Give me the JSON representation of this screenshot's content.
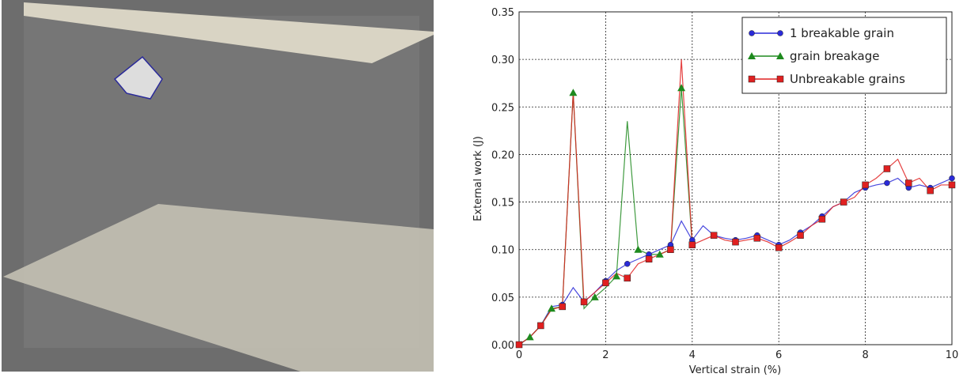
{
  "chart_data": {
    "type": "line",
    "x_label": "Vertical strain (%)",
    "y_label": "External work (J)",
    "x": [
      0,
      0.25,
      0.5,
      0.75,
      1,
      1.25,
      1.5,
      1.75,
      2,
      2.25,
      2.5,
      2.75,
      3,
      3.25,
      3.5,
      3.75,
      4,
      4.25,
      4.5,
      4.75,
      5,
      5.25,
      5.5,
      5.75,
      6,
      6.25,
      6.5,
      6.75,
      7,
      7.25,
      7.5,
      7.75,
      8,
      8.25,
      8.5,
      8.75,
      9,
      9.25,
      9.5,
      9.75,
      10
    ],
    "series": [
      {
        "name": "1 breakable grain",
        "color": "#2a2ad8",
        "marker": "circle",
        "values": [
          0,
          0.008,
          0.02,
          0.04,
          0.042,
          0.06,
          0.045,
          0.055,
          0.067,
          0.078,
          0.085,
          0.09,
          0.095,
          0.1,
          0.105,
          0.13,
          0.11,
          0.125,
          0.115,
          0.112,
          0.11,
          0.112,
          0.115,
          0.11,
          0.105,
          0.11,
          0.118,
          0.125,
          0.135,
          0.145,
          0.15,
          0.16,
          0.165,
          0.168,
          0.17,
          0.175,
          0.165,
          0.168,
          0.165,
          0.17,
          0.175
        ]
      },
      {
        "name": "grain breakage",
        "color": "#1e8a1e",
        "marker": "triangle",
        "values": [
          0,
          0.008,
          0.02,
          0.038,
          0.04,
          0.265,
          0.038,
          0.05,
          0.06,
          0.072,
          0.235,
          0.1,
          0.095,
          0.095,
          0.1,
          0.27,
          0.105,
          null,
          null,
          null,
          null,
          null,
          null,
          null,
          null,
          null,
          null,
          null,
          null,
          null,
          null,
          null,
          null,
          null,
          null,
          null,
          null,
          null,
          null,
          null,
          null
        ]
      },
      {
        "name": "Unbreakable grains",
        "color": "#e02020",
        "marker": "square",
        "values": [
          0,
          0.008,
          0.02,
          0.037,
          0.04,
          0.265,
          0.045,
          0.055,
          0.065,
          0.075,
          0.07,
          0.085,
          0.09,
          0.095,
          0.1,
          0.3,
          0.105,
          0.11,
          0.115,
          0.11,
          0.108,
          0.11,
          0.112,
          0.108,
          0.102,
          0.108,
          0.115,
          0.125,
          0.132,
          0.145,
          0.15,
          0.155,
          0.168,
          0.175,
          0.185,
          0.195,
          0.17,
          0.175,
          0.162,
          0.168,
          0.168
        ]
      }
    ],
    "xlim": [
      0,
      10
    ],
    "xticks": [
      0,
      2,
      4,
      6,
      8,
      10
    ],
    "ylim": [
      0,
      0.35
    ],
    "yticks": [
      {
        "value": 0,
        "label": "0.00"
      },
      {
        "value": 0.05,
        "label": "0.05"
      },
      {
        "value": 0.1,
        "label": "0.10"
      },
      {
        "value": 0.15,
        "label": "0.15"
      },
      {
        "value": 0.2,
        "label": "0.20"
      },
      {
        "value": 0.25,
        "label": "0.25"
      },
      {
        "value": 0.3,
        "label": "0.30"
      },
      {
        "value": 0.35,
        "label": "0.35"
      }
    ],
    "grid": true,
    "legend": "upper right"
  }
}
